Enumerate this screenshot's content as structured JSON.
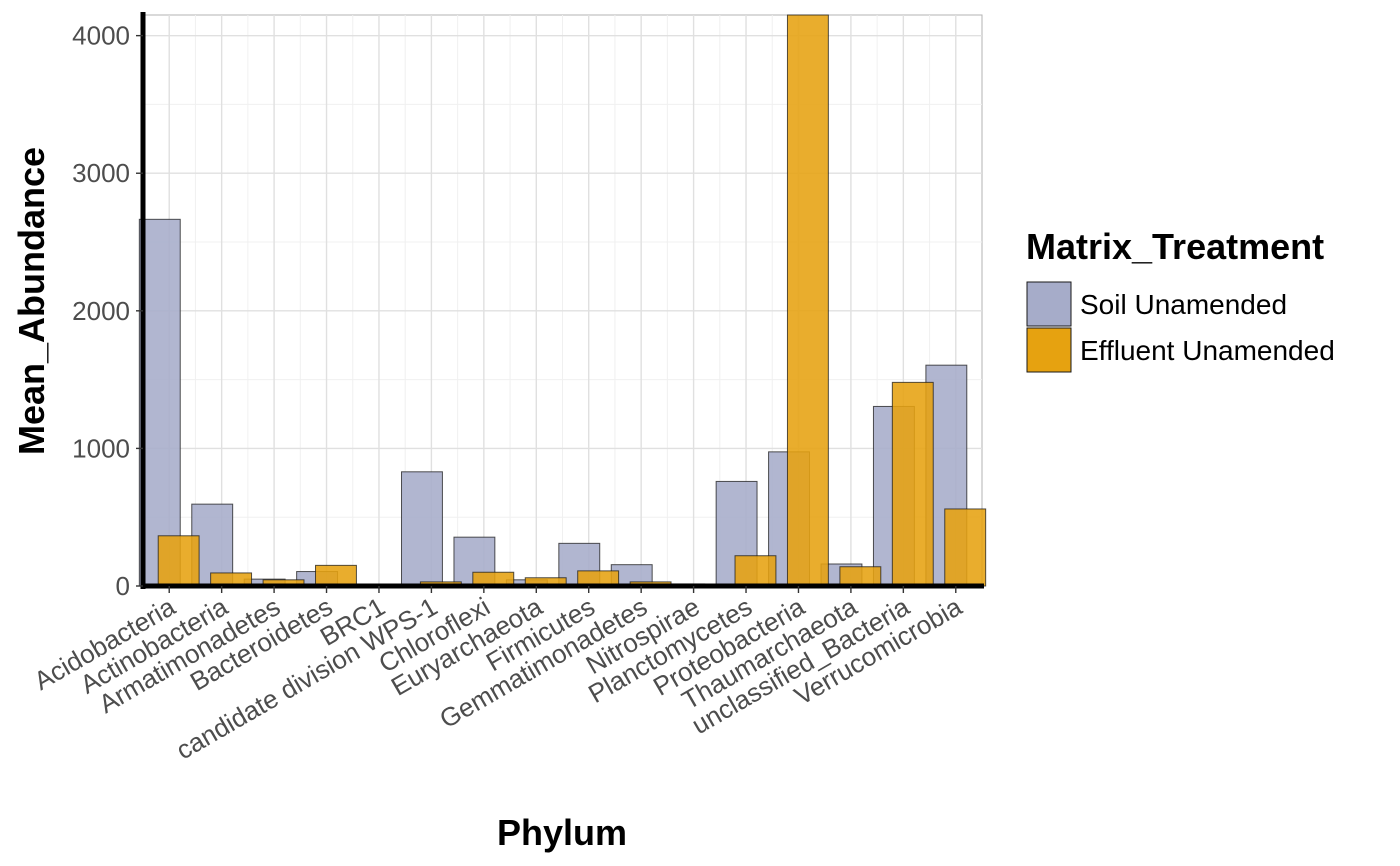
{
  "chart_data": {
    "type": "bar",
    "title": "",
    "xlabel": "Phylum",
    "ylabel": "Mean_Abundance",
    "ylim": [
      0,
      4150
    ],
    "yticks": [
      0,
      1000,
      2000,
      3000,
      4000
    ],
    "ytick_labels": [
      "0",
      "1000",
      "2000",
      "3000",
      "4000"
    ],
    "grid": true,
    "legend_position": "right",
    "legend_title": "Matrix_Treatment",
    "categories": [
      "Acidobacteria",
      "Actinobacteria",
      "Armatimonadetes",
      "Bacteroidetes",
      "BRC1",
      "candidate division WPS-1",
      "Chloroflexi",
      "Euryarchaeota",
      "Firmicutes",
      "Gemmatimonadetes",
      "Nitrospirae",
      "Planctomycetes",
      "Proteobacteria",
      "Thaumarchaeota",
      "unclassified_Bacteria",
      "Verrucomicrobia"
    ],
    "series": [
      {
        "name": "Soil Unamended",
        "color": "#a6acc9",
        "values": [
          2665,
          595,
          50,
          105,
          12,
          830,
          355,
          45,
          310,
          155,
          15,
          760,
          975,
          160,
          1305,
          1605
        ]
      },
      {
        "name": "Effluent Unamended",
        "color": "#e6a210",
        "values": [
          365,
          95,
          45,
          150,
          8,
          30,
          100,
          60,
          110,
          30,
          10,
          220,
          4150,
          140,
          1480,
          560
        ]
      }
    ]
  }
}
